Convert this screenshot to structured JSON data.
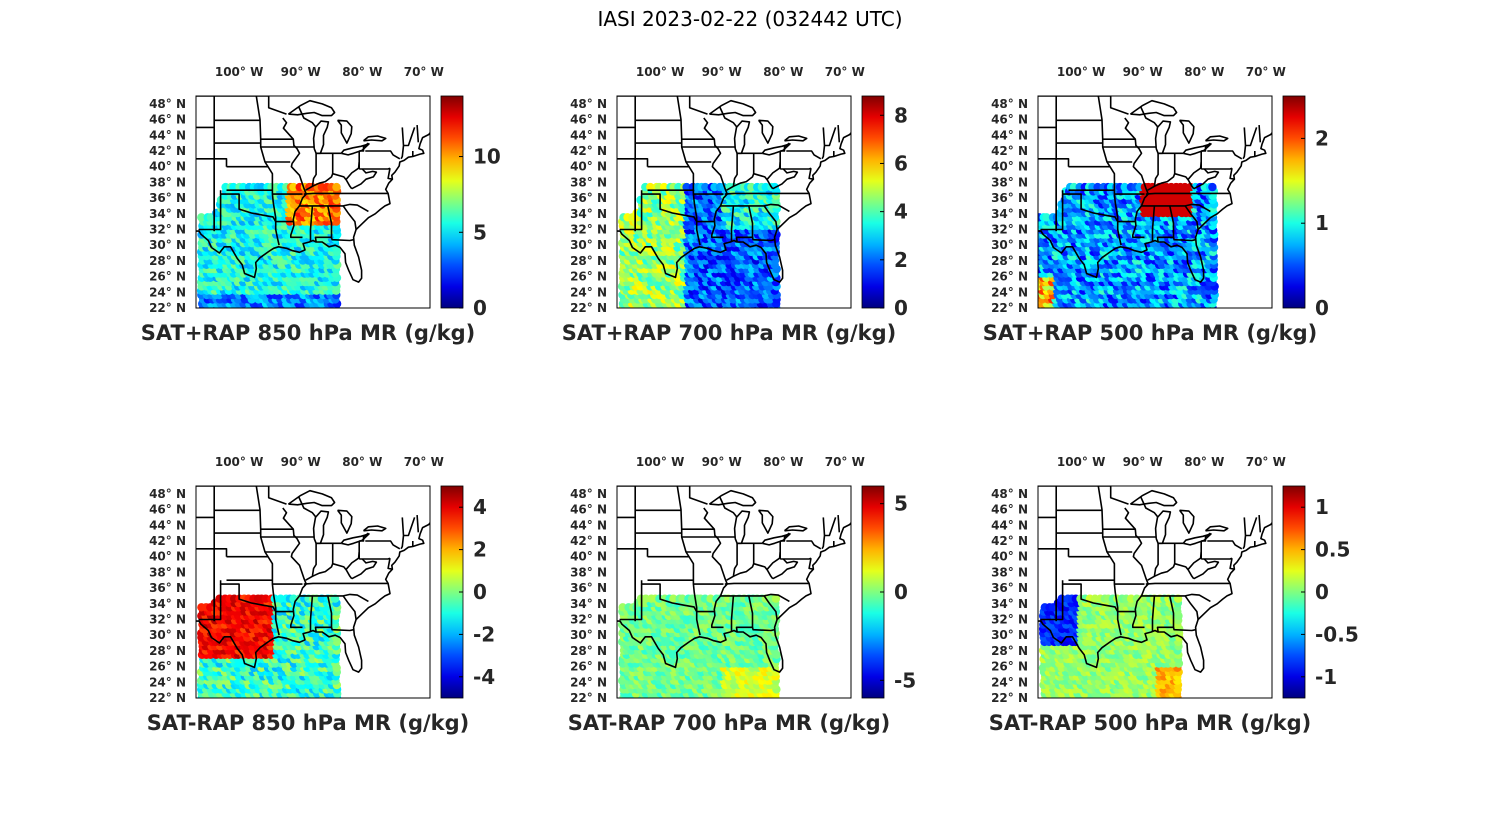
{
  "figure": {
    "title": "IASI 2023-02-22 (032442 UTC)"
  },
  "longitude_ticks": [
    "100° W",
    "90° W",
    "80° W",
    "70° W"
  ],
  "latitude_ticks": [
    "48° N",
    "46° N",
    "44° N",
    "42° N",
    "40° N",
    "38° N",
    "36° N",
    "34° N",
    "32° N",
    "30° N",
    "28° N",
    "26° N",
    "24° N",
    "22° N"
  ],
  "map_extent": {
    "lon": [
      -107,
      -69
    ],
    "lat": [
      22,
      49
    ]
  },
  "colormap": "jet",
  "panels": [
    {
      "title": "SAT+RAP 850 hPa MR (g/kg)",
      "clim": [
        0,
        14
      ],
      "ticks": [
        "0",
        "5",
        "10"
      ],
      "tick_values": [
        0,
        5,
        10
      ],
      "field": "abs850"
    },
    {
      "title": "SAT+RAP 700 hPa MR (g/kg)",
      "clim": [
        0,
        8.8
      ],
      "ticks": [
        "0",
        "2",
        "4",
        "6",
        "8"
      ],
      "tick_values": [
        0,
        2,
        4,
        6,
        8
      ],
      "field": "abs700"
    },
    {
      "title": "SAT+RAP 500 hPa MR (g/kg)",
      "clim": [
        0,
        2.5
      ],
      "ticks": [
        "0",
        "1",
        "2"
      ],
      "tick_values": [
        0,
        1,
        2
      ],
      "field": "abs500"
    },
    {
      "title": "SAT-RAP 850 hPa MR (g/kg)",
      "clim": [
        -5,
        5
      ],
      "ticks": [
        "-4",
        "-2",
        "0",
        "2",
        "4"
      ],
      "tick_values": [
        -4,
        -2,
        0,
        2,
        4
      ],
      "field": "diff850"
    },
    {
      "title": "SAT-RAP 700 hPa MR (g/kg)",
      "clim": [
        -6,
        6
      ],
      "ticks": [
        "-5",
        "0",
        "5"
      ],
      "tick_values": [
        -5,
        0,
        5
      ],
      "field": "diff700"
    },
    {
      "title": "SAT-RAP 500 hPa MR (g/kg)",
      "clim": [
        -1.25,
        1.25
      ],
      "ticks": [
        "-1",
        "-0.5",
        "0",
        "0.5",
        "1"
      ],
      "tick_values": [
        -1,
        -0.5,
        0,
        0.5,
        1
      ],
      "field": "diff500"
    }
  ]
}
